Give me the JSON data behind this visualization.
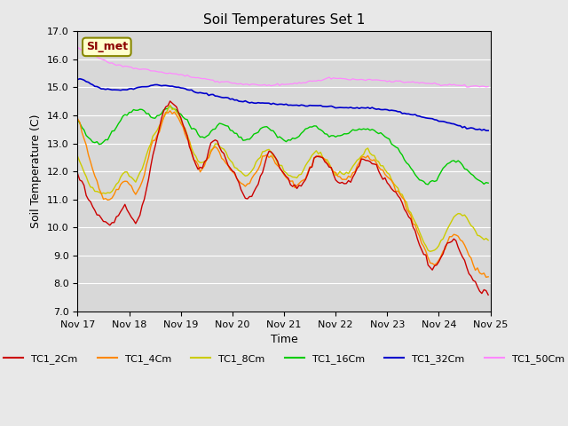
{
  "title": "Soil Temperatures Set 1",
  "xlabel": "Time",
  "ylabel": "Soil Temperature (C)",
  "ylim": [
    7.0,
    17.0
  ],
  "yticks": [
    7.0,
    8.0,
    9.0,
    10.0,
    11.0,
    12.0,
    13.0,
    14.0,
    15.0,
    16.0,
    17.0
  ],
  "background_color": "#e8e8e8",
  "plot_bg_color": "#d8d8d8",
  "series_colors": {
    "TC1_2Cm": "#cc0000",
    "TC1_4Cm": "#ff8800",
    "TC1_8Cm": "#cccc00",
    "TC1_16Cm": "#00cc00",
    "TC1_32Cm": "#0000cc",
    "TC1_50Cm": "#ff88ff"
  },
  "legend_label": "SI_met",
  "n_points": 192,
  "xtick_positions": [
    0,
    24,
    48,
    72,
    96,
    120,
    144,
    168,
    192
  ],
  "xtick_labels": [
    "Nov 17",
    "Nov 18",
    "Nov 19",
    "Nov 20",
    "Nov 21",
    "Nov 22",
    "Nov 23",
    "Nov 24",
    "Nov 25"
  ]
}
